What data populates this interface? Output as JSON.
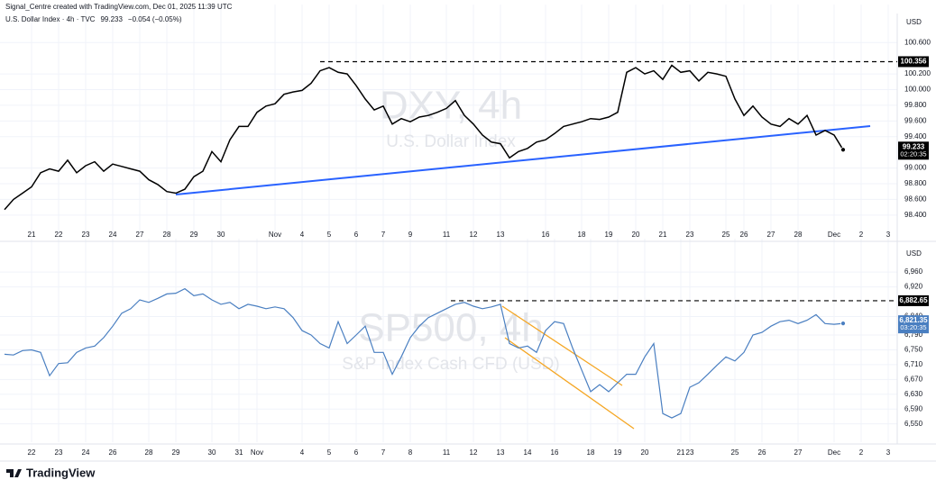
{
  "credit": "Signal_Centre created with TradingView.com, Dec 01, 2025 11:39 UTC",
  "brand": "TradingView",
  "chart_data": [
    {
      "type": "line",
      "title": "U.S. Dollar Index · 4h · TVC",
      "change": "−0.054 (−0.05%)",
      "watermark": [
        "DXY, 4h",
        "U.S. Dollar Index"
      ],
      "currency": "USD",
      "countdown": "02:20:35",
      "level": 100.356,
      "grid": true,
      "categories": [
        null,
        null,
        null,
        "21",
        null,
        null,
        "22",
        null,
        null,
        "23",
        null,
        null,
        "24",
        null,
        null,
        "27",
        null,
        null,
        "28",
        null,
        null,
        "29",
        null,
        null,
        "30",
        null,
        null,
        null,
        null,
        null,
        "Nov",
        null,
        null,
        "4",
        null,
        null,
        "5",
        null,
        null,
        "6",
        null,
        null,
        "7",
        null,
        null,
        "9",
        null,
        null,
        null,
        "11",
        null,
        null,
        "12",
        null,
        null,
        "13",
        null,
        null,
        null,
        null,
        "16",
        null,
        null,
        null,
        "18",
        null,
        null,
        "19",
        null,
        null,
        "20",
        null,
        null,
        "21",
        null,
        null,
        "23",
        null,
        null,
        null,
        "25",
        null,
        "26",
        null,
        null,
        "27",
        null,
        null,
        "28",
        null,
        null,
        null,
        "Dec",
        null,
        null,
        "2",
        null,
        null,
        "3",
        null
      ],
      "series": [
        {
          "name": "DXY",
          "color": "#000000",
          "values": [
            98.47,
            98.6,
            98.68,
            98.76,
            98.94,
            98.99,
            98.96,
            99.1,
            98.94,
            99.03,
            99.08,
            98.96,
            99.05,
            99.02,
            98.99,
            98.96,
            98.85,
            98.79,
            98.7,
            98.68,
            98.73,
            98.89,
            98.96,
            99.21,
            99.08,
            99.36,
            99.53,
            99.53,
            99.71,
            99.79,
            99.82,
            99.94,
            99.97,
            99.99,
            100.08,
            100.24,
            100.28,
            100.22,
            100.2,
            100.05,
            99.88,
            99.74,
            99.79,
            99.56,
            99.63,
            99.59,
            99.65,
            99.67,
            99.71,
            99.76,
            99.86,
            99.67,
            99.56,
            99.42,
            99.33,
            99.31,
            99.13,
            99.21,
            99.25,
            99.33,
            99.36,
            99.44,
            99.53,
            99.56,
            99.59,
            99.63,
            99.62,
            99.65,
            99.71,
            100.22,
            100.28,
            100.2,
            100.24,
            100.13,
            100.31,
            100.22,
            100.24,
            100.11,
            100.22,
            100.2,
            100.17,
            99.88,
            99.67,
            99.79,
            99.65,
            99.56,
            99.53,
            99.63,
            99.56,
            99.67,
            99.42,
            99.48,
            99.42,
            99.233,
            null,
            null,
            null,
            null,
            null,
            null
          ]
        }
      ],
      "ylim": [
        98.18,
        100.97
      ],
      "yticks": [
        {
          "value": 98.4,
          "label": "98.400"
        },
        {
          "value": 98.6,
          "label": "98.600"
        },
        {
          "value": 98.8,
          "label": "98.800"
        },
        {
          "value": 99,
          "label": "99.000"
        },
        {
          "value": 99.4,
          "label": "99.400"
        },
        {
          "value": 99.6,
          "label": "99.600"
        },
        {
          "value": 99.8,
          "label": "99.800"
        },
        {
          "value": 100,
          "label": "100.000"
        },
        {
          "value": 100.2,
          "label": "100.200"
        },
        {
          "value": 100.6,
          "label": "100.600"
        }
      ]
    },
    {
      "type": "line",
      "watermark": [
        "SP500, 4h",
        "S&P Index Cash CFD (USD)"
      ],
      "currency": "USD",
      "countdown": "03:20:35",
      "price_label": "6,821.35",
      "level": {
        "value": 6882.65,
        "label": "6,882.65"
      },
      "grid": true,
      "categories": [
        null,
        null,
        null,
        "22",
        null,
        null,
        "23",
        null,
        null,
        "24",
        null,
        null,
        "26",
        null,
        null,
        null,
        "28",
        null,
        null,
        "29",
        null,
        null,
        null,
        "30",
        null,
        null,
        "31",
        null,
        "Nov",
        null,
        null,
        null,
        null,
        "4",
        null,
        null,
        "5",
        null,
        null,
        "6",
        null,
        null,
        "7",
        null,
        null,
        "8",
        null,
        null,
        null,
        "11",
        null,
        null,
        "12",
        null,
        null,
        "13",
        null,
        null,
        "14",
        null,
        null,
        "16",
        null,
        null,
        null,
        "18",
        null,
        null,
        "19",
        null,
        null,
        "20",
        null,
        null,
        null,
        "21",
        "23",
        null,
        null,
        null,
        null,
        "25",
        null,
        null,
        "26",
        null,
        null,
        null,
        "27",
        null,
        null,
        null,
        "Dec",
        null,
        null,
        "2",
        null,
        null,
        "3",
        null
      ],
      "series": [
        {
          "name": "SP500",
          "color": "#4a7fc1",
          "values": [
            6738,
            6736,
            6748,
            6750,
            6743,
            6680,
            6713,
            6715,
            6743,
            6755,
            6760,
            6783,
            6814,
            6849,
            6861,
            6885,
            6878,
            6889,
            6901,
            6903,
            6915,
            6896,
            6901,
            6885,
            6873,
            6878,
            6861,
            6873,
            6868,
            6861,
            6866,
            6861,
            6837,
            6802,
            6790,
            6767,
            6755,
            6826,
            6767,
            6790,
            6814,
            6743,
            6743,
            6684,
            6731,
            6783,
            6814,
            6837,
            6849,
            6861,
            6873,
            6878,
            6868,
            6861,
            6866,
            6873,
            6767,
            6755,
            6760,
            6743,
            6802,
            6826,
            6821,
            6755,
            6696,
            6637,
            6656,
            6637,
            6661,
            6684,
            6684,
            6731,
            6767,
            6578,
            6566,
            6578,
            6649,
            6661,
            6684,
            6708,
            6731,
            6720,
            6743,
            6790,
            6797,
            6814,
            6826,
            6830,
            6821,
            6830,
            6845,
            6821,
            6819,
            6821.35,
            null,
            null,
            null,
            null,
            null,
            null
          ]
        }
      ],
      "ylim": [
        6503,
        7026
      ],
      "yticks": [
        {
          "value": 6550,
          "label": "6,550"
        },
        {
          "value": 6590,
          "label": "6,590"
        },
        {
          "value": 6630,
          "label": "6,630"
        },
        {
          "value": 6670,
          "label": "6,670"
        },
        {
          "value": 6710,
          "label": "6,710"
        },
        {
          "value": 6750,
          "label": "6,750"
        },
        {
          "value": 6790,
          "label": "6,790"
        },
        {
          "value": 6840,
          "label": "6,840"
        },
        {
          "value": 6920,
          "label": "6,920"
        },
        {
          "value": 6960,
          "label": "6,960"
        }
      ]
    }
  ]
}
